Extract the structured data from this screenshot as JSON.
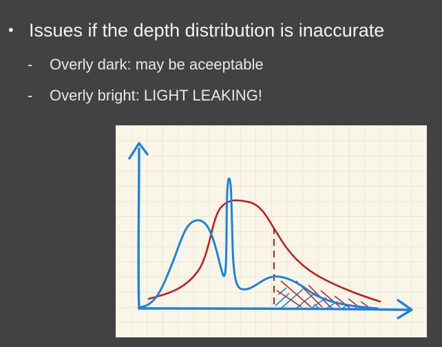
{
  "slide": {
    "bullet": {
      "marker": "•",
      "text": "Issues if the depth distribution is inaccurate"
    },
    "sub_items": [
      {
        "marker": "-",
        "text": "Overly dark: may be aceeptable"
      },
      {
        "marker": "-",
        "text": "Overly bright: LIGHT LEAKING!"
      }
    ]
  },
  "figure": {
    "kind": "hand-drawn sketch on grid paper",
    "colors": {
      "paper": "#f9f5e7",
      "grid": "#dcdacb",
      "axis": "#1a82e0",
      "blue_curve": "#1a82e0",
      "red_curve": "#c41a1a"
    }
  }
}
